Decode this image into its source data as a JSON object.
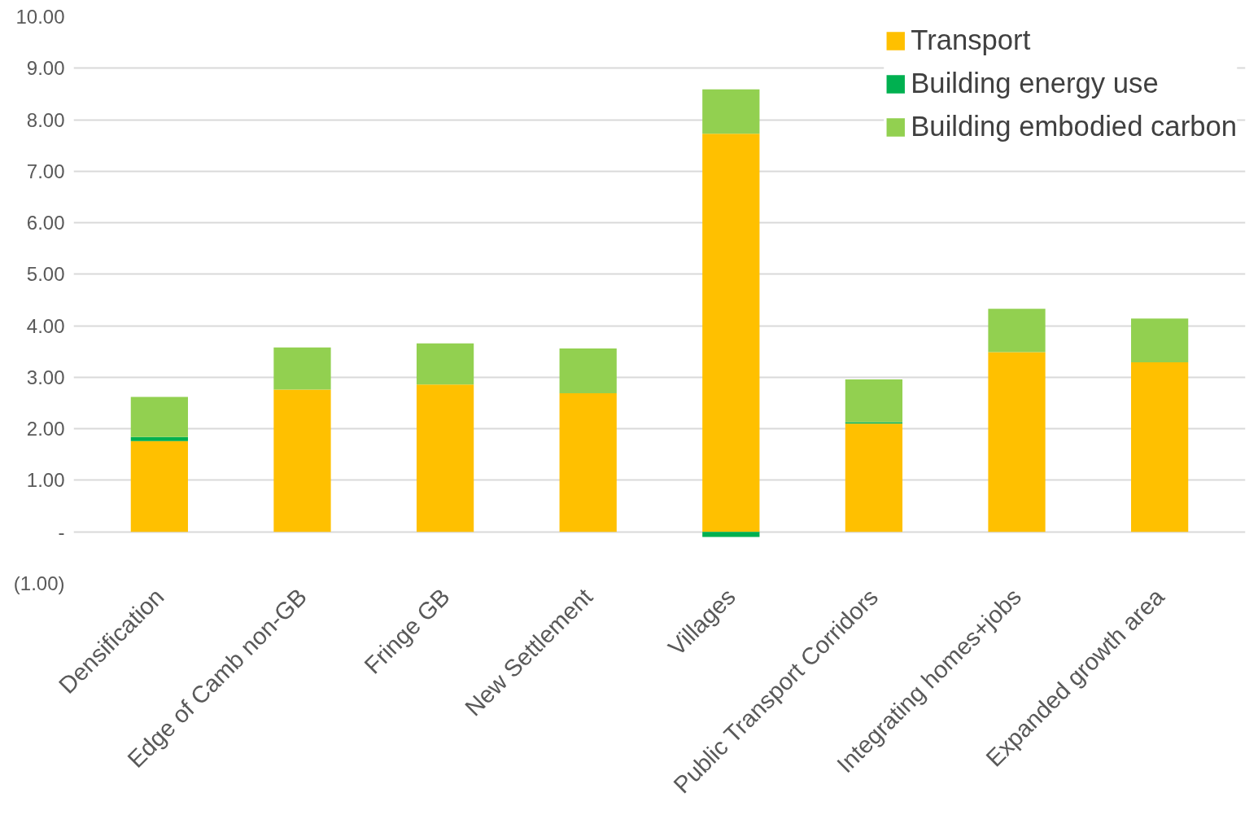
{
  "chart_data": {
    "type": "bar",
    "stacked": true,
    "categories": [
      "Densification",
      "Edge of Camb non-GB",
      "Fringe GB",
      "New Settlement",
      "Villages",
      "Public Transport Corridors",
      "Integrating homes+jobs",
      "Expanded growth area"
    ],
    "series": [
      {
        "name": "Transport",
        "color": "#ffc000",
        "values": [
          1.76,
          2.76,
          2.86,
          2.69,
          7.73,
          2.1,
          3.49,
          3.29
        ]
      },
      {
        "name": "Building energy use",
        "color": "#00b050",
        "values": [
          0.08,
          0,
          0,
          0,
          -0.1,
          0.03,
          0,
          0
        ]
      },
      {
        "name": "Building embodied carbon",
        "color": "#92d050",
        "values": [
          0.78,
          0.82,
          0.8,
          0.87,
          0.86,
          0.83,
          0.84,
          0.85
        ]
      }
    ],
    "ylim": [
      -1,
      10
    ],
    "yticks": [
      {
        "value": -1,
        "label": "(1.00)"
      },
      {
        "value": 0,
        "label": "-"
      },
      {
        "value": 1,
        "label": "1.00"
      },
      {
        "value": 2,
        "label": "2.00"
      },
      {
        "value": 3,
        "label": "3.00"
      },
      {
        "value": 4,
        "label": "4.00"
      },
      {
        "value": 5,
        "label": "5.00"
      },
      {
        "value": 6,
        "label": "6.00"
      },
      {
        "value": 7,
        "label": "7.00"
      },
      {
        "value": 8,
        "label": "8.00"
      },
      {
        "value": 9,
        "label": "9.00"
      },
      {
        "value": 10,
        "label": "10.00"
      }
    ],
    "grid": "y",
    "legend": "top right"
  }
}
